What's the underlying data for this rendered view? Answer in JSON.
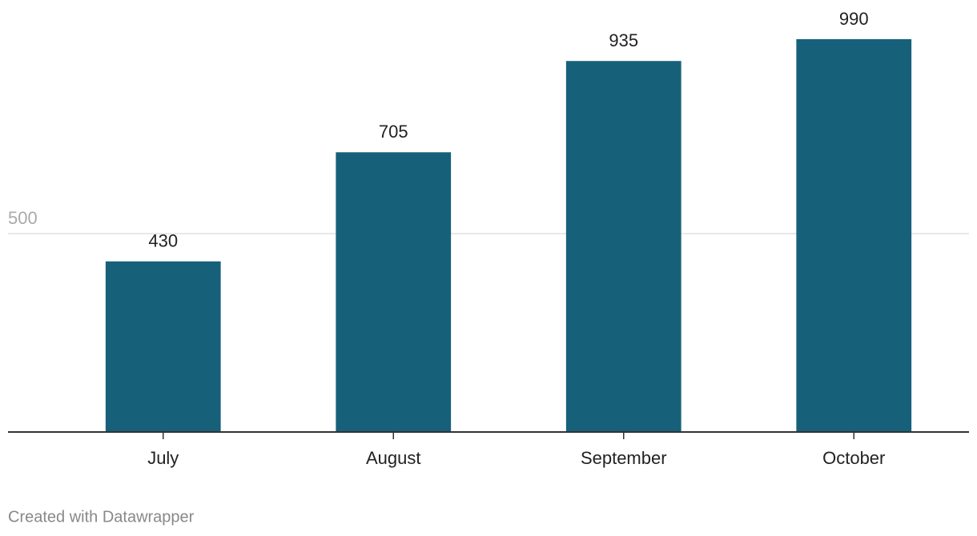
{
  "chart_data": {
    "type": "bar",
    "categories": [
      "July",
      "August",
      "September",
      "October"
    ],
    "values": [
      430,
      705,
      935,
      990
    ],
    "color": "#17607a",
    "ylim": [
      0,
      1000
    ],
    "yticks": [
      500
    ],
    "grid": true,
    "note": "Created with Datawrapper"
  }
}
